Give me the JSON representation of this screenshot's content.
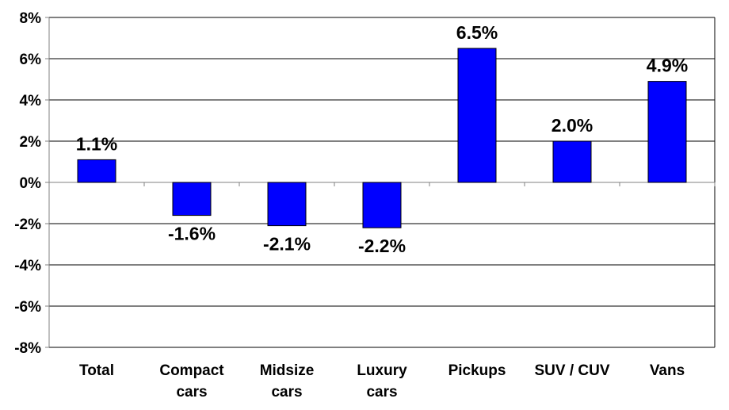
{
  "chart_data": {
    "type": "bar",
    "title": "",
    "xlabel": "",
    "ylabel": "",
    "categories": [
      "Total",
      "Compact cars",
      "Midsize cars",
      "Luxury cars",
      "Pickups",
      "SUV / CUV",
      "Vans"
    ],
    "category_lines": [
      [
        "Total"
      ],
      [
        "Compact",
        "cars"
      ],
      [
        "Midsize",
        "cars"
      ],
      [
        "Luxury",
        "cars"
      ],
      [
        "Pickups"
      ],
      [
        "SUV / CUV"
      ],
      [
        "Vans"
      ]
    ],
    "values": [
      1.1,
      -1.6,
      -2.1,
      -2.2,
      6.5,
      2.0,
      4.9
    ],
    "data_labels": [
      "1.1%",
      "-1.6%",
      "-2.1%",
      "-2.2%",
      "6.5%",
      "2.0%",
      "4.9%"
    ],
    "ylim": [
      -8,
      8
    ],
    "yticks": [
      8,
      6,
      4,
      2,
      0,
      -2,
      -4,
      -6,
      -8
    ],
    "ytick_labels": [
      "8%",
      "6%",
      "4%",
      "2%",
      "0%",
      "-2%",
      "-4%",
      "-6%",
      "-8%"
    ],
    "grid": true,
    "legend": "none",
    "colors": {
      "bar_fill": "#0000ff",
      "bar_stroke": "#000000",
      "grid": "#000000",
      "axis": "#808080"
    }
  }
}
